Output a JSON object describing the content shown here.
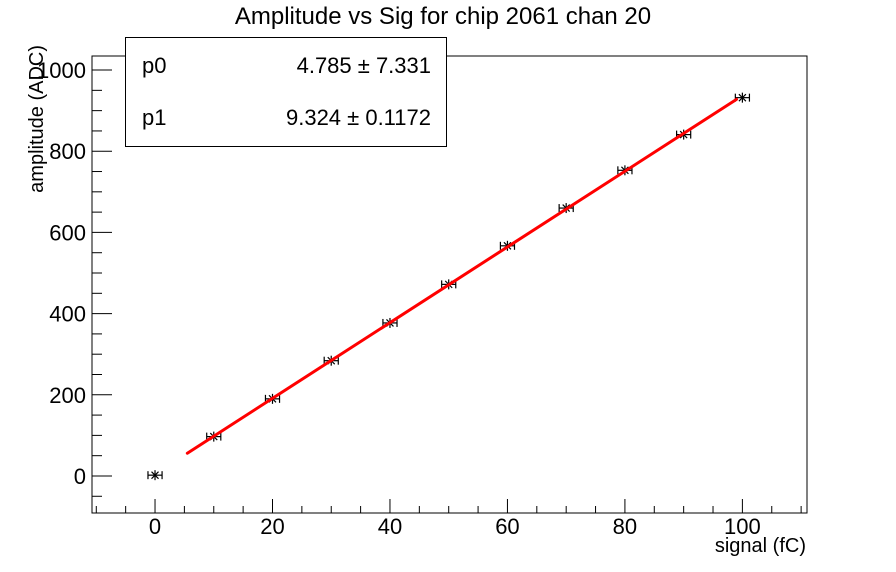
{
  "title": "Amplitude vs Sig for chip 2061 chan 20",
  "stats_box": {
    "rows": [
      {
        "label": "p0",
        "value": "4.785 ± 7.331"
      },
      {
        "label": "p1",
        "value": "9.324 ± 0.1172"
      }
    ]
  },
  "chart_data": {
    "type": "scatter",
    "title": "Amplitude vs Sig for chip 2061 chan 20",
    "xlabel": "signal (fC)",
    "ylabel": "amplitude (ADC)",
    "xlim": [
      -10.73,
      111.0
    ],
    "ylim": [
      -91.2,
      1034.6
    ],
    "x_major_ticks": [
      0,
      20,
      40,
      60,
      80,
      100
    ],
    "x_minor_step": 5,
    "y_major_ticks": [
      0,
      200,
      400,
      600,
      800,
      1000
    ],
    "y_minor_step": 50,
    "grid": false,
    "legend": null,
    "frame_color": "#000000",
    "points": {
      "x": [
        0,
        10,
        20,
        30,
        40,
        50,
        60,
        70,
        80,
        90,
        100
      ],
      "y": [
        2,
        97,
        190,
        284,
        377,
        472,
        567,
        660,
        753,
        841,
        932
      ],
      "xerr": 1.2,
      "marker": "asterisk-with-error-bars",
      "color": "#000000"
    },
    "fit": {
      "type": "linear",
      "p0": 4.785,
      "p1": 9.324,
      "p0_error": 7.331,
      "p1_error": 0.1172,
      "x_range": [
        5.5,
        99.0
      ],
      "color": "#ff0000",
      "line_width": 3
    }
  }
}
